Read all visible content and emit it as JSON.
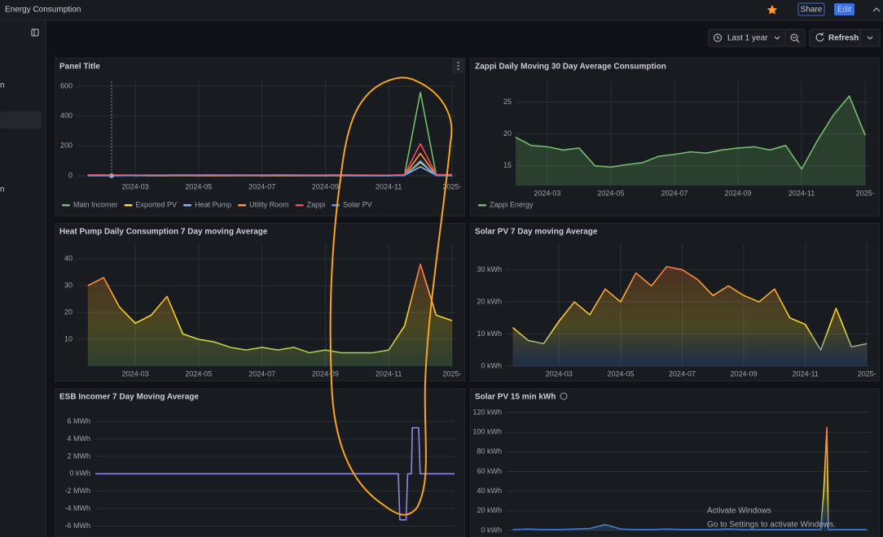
{
  "header": {
    "title": "Energy Consumption",
    "share": "Share",
    "edit": "Edit"
  },
  "toolbar": {
    "time_range": "Last 1 year",
    "refresh": "Refresh"
  },
  "sidebar": {
    "items": [
      "n",
      "n"
    ]
  },
  "watermark": {
    "title": "Activate Windows",
    "subtitle": "Go to Settings to activate Windows."
  },
  "chart_data": [
    {
      "type": "line",
      "title": "Panel Title",
      "grid": true,
      "fill": false,
      "legend": "bottom",
      "x": [
        0.5,
        1,
        1.5,
        2,
        2.5,
        3,
        3.5,
        4,
        4.5,
        5,
        5.5,
        6,
        6.5,
        7,
        7.5,
        8,
        8.5,
        9,
        9.5,
        10,
        10.5,
        11,
        11.5,
        12
      ],
      "xlim": [
        0.17,
        12.13
      ],
      "ylim": [
        -22,
        633
      ],
      "yticks": [
        0,
        200,
        400,
        600
      ],
      "xticks": [
        {
          "value": 2,
          "label": "2024-03"
        },
        {
          "value": 4,
          "label": "2024-05"
        },
        {
          "value": 6,
          "label": "2024-07"
        },
        {
          "value": 8,
          "label": "2024-09"
        },
        {
          "value": 10,
          "label": "2024-11"
        },
        {
          "value": 12,
          "label": "2025-"
        }
      ],
      "series": [
        {
          "name": "Main Incomer",
          "color": "#73bf69",
          "values": [
            3,
            4,
            3,
            3,
            4,
            3,
            5,
            3,
            3,
            4,
            3,
            3,
            4,
            3,
            3,
            3,
            4,
            3,
            3,
            3,
            6,
            560,
            5,
            4
          ]
        },
        {
          "name": "Exported PV",
          "color": "#fade2a",
          "values": [
            1,
            1,
            1,
            2,
            1,
            1,
            2,
            1,
            1,
            1,
            2,
            1,
            1,
            1,
            1,
            1,
            1,
            1,
            1,
            1,
            2,
            90,
            2,
            1
          ]
        },
        {
          "name": "Heat Pump",
          "color": "#8ab8ff",
          "values": [
            2,
            2,
            2,
            1,
            1,
            1,
            1,
            1,
            1,
            1,
            1,
            1,
            1,
            1,
            1,
            1,
            1,
            1,
            1,
            1,
            3,
            60,
            3,
            3
          ]
        },
        {
          "name": "Utility Room",
          "color": "#ff9830",
          "values": [
            1,
            1,
            1,
            1,
            1,
            1,
            1,
            1,
            1,
            1,
            1,
            1,
            1,
            1,
            1,
            1,
            1,
            1,
            1,
            1,
            2,
            150,
            2,
            2
          ]
        },
        {
          "name": "Zappi",
          "color": "#f2495c",
          "values": [
            6,
            5,
            5,
            4,
            4,
            5,
            5,
            5,
            6,
            5,
            5,
            5,
            6,
            5,
            5,
            5,
            6,
            5,
            4,
            3,
            8,
            215,
            8,
            8
          ]
        },
        {
          "name": "Solar PV",
          "color": "#5794f2",
          "values": [
            0,
            1,
            1,
            2,
            2,
            3,
            3,
            3,
            3,
            3,
            3,
            3,
            3,
            3,
            2,
            2,
            2,
            1,
            1,
            1,
            1,
            100,
            1,
            0
          ]
        }
      ]
    },
    {
      "type": "line",
      "title": "Zappi Daily Moving 30 Day Average Consumption",
      "grid": true,
      "fill": true,
      "legend": "bottom",
      "x": [
        1,
        1.5,
        2,
        2.5,
        3,
        3.5,
        4,
        4.5,
        5,
        5.5,
        6,
        6.5,
        7,
        7.5,
        8,
        8.5,
        9,
        9.5,
        10,
        10.5,
        11,
        11.5,
        12
      ],
      "xlim": [
        1.03,
        12.15
      ],
      "ylim": [
        11.9,
        28.3
      ],
      "yticks": [
        15,
        20,
        25
      ],
      "xticks": [
        {
          "value": 2,
          "label": "2024-03"
        },
        {
          "value": 4,
          "label": "2024-05"
        },
        {
          "value": 6,
          "label": "2024-07"
        },
        {
          "value": 8,
          "label": "2024-09"
        },
        {
          "value": 10,
          "label": "2024-11"
        },
        {
          "value": 12,
          "label": "2025-"
        }
      ],
      "series": [
        {
          "name": "Zappi Energy",
          "color": "#73bf69",
          "values": [
            19.5,
            18.2,
            18,
            17.5,
            17.8,
            15,
            14.8,
            15.2,
            15.5,
            16.5,
            16.8,
            17.2,
            17,
            17.5,
            17.8,
            18,
            17.5,
            18.2,
            14.5,
            19,
            23,
            26,
            19.8
          ]
        }
      ]
    },
    {
      "type": "line",
      "title": "Heat Pump Daily Consumption 7 Day moving Average",
      "grid": true,
      "fill": true,
      "color_scheme": [
        "#73bf69",
        "#fade2a",
        "#ff9830",
        "#f2495c"
      ],
      "x": [
        0.5,
        1,
        1.5,
        2,
        2.5,
        3,
        3.5,
        4,
        4.5,
        5,
        5.5,
        6,
        6.5,
        7,
        7.5,
        8,
        8.5,
        9,
        9.5,
        10,
        10.5,
        11,
        11.5,
        12
      ],
      "xlim": [
        0.17,
        12.13
      ],
      "ylim": [
        0,
        45.5
      ],
      "yticks": [
        10,
        20,
        30,
        40
      ],
      "xticks": [
        {
          "value": 2,
          "label": "2024-03"
        },
        {
          "value": 4,
          "label": "2024-05"
        },
        {
          "value": 6,
          "label": "2024-07"
        },
        {
          "value": 8,
          "label": "2024-09"
        },
        {
          "value": 10,
          "label": "2024-11"
        },
        {
          "value": 12,
          "label": "2025-"
        }
      ],
      "values": [
        30,
        33,
        22,
        16,
        19,
        26,
        12,
        10,
        9,
        7,
        6,
        7,
        6,
        7,
        5,
        6,
        5,
        5,
        5,
        6,
        15,
        38,
        19,
        17
      ]
    },
    {
      "type": "line",
      "title": "Solar PV 7 Day moving Average",
      "grid": true,
      "fill": true,
      "color_scheme": [
        "#3274d9",
        "#fade2a",
        "#ff9830",
        "#f2495c"
      ],
      "x": [
        0.5,
        1,
        1.5,
        2,
        2.5,
        3,
        3.5,
        4,
        4.5,
        5,
        5.5,
        6,
        6.5,
        7,
        7.5,
        8,
        8.5,
        9,
        9.5,
        10,
        10.5,
        11,
        11.5,
        12
      ],
      "xlim": [
        0.3,
        12.1
      ],
      "ylim": [
        0,
        38
      ],
      "yticks": [
        {
          "value": 0,
          "label": "0 kWh"
        },
        {
          "value": 10,
          "label": "10 kWh"
        },
        {
          "value": 20,
          "label": "20 kWh"
        },
        {
          "value": 30,
          "label": "30 kWh"
        }
      ],
      "xticks": [
        {
          "value": 2,
          "label": "2024-03"
        },
        {
          "value": 4,
          "label": "2024-05"
        },
        {
          "value": 6,
          "label": "2024-07"
        },
        {
          "value": 8,
          "label": "2024-09"
        },
        {
          "value": 10,
          "label": "2024-11"
        },
        {
          "value": 12,
          "label": "2025-"
        }
      ],
      "values": [
        12,
        8,
        7,
        14,
        20,
        16,
        24,
        20,
        29,
        25,
        31,
        30,
        27,
        22,
        25,
        22,
        20,
        24,
        15,
        13,
        5,
        18,
        6,
        7
      ]
    },
    {
      "type": "line",
      "title": "ESB Incomer 7 Day Moving Average",
      "grid": true,
      "fill": false,
      "color": "#8f87e8",
      "x": [
        0.5,
        2,
        4,
        6,
        8,
        10.2,
        10.25,
        10.45,
        10.5,
        10.62,
        10.65,
        10.85,
        10.9,
        12
      ],
      "xlim": [
        0.5,
        12
      ],
      "ylim": [
        -6.9,
        7.7
      ],
      "yticks": [
        {
          "value": 6,
          "label": "6 MWh"
        },
        {
          "value": 4,
          "label": "4 MWh"
        },
        {
          "value": 2,
          "label": "2 MWh"
        },
        {
          "value": 0,
          "label": "0 kWh"
        },
        {
          "value": -2,
          "label": "-2 MWh"
        },
        {
          "value": -4,
          "label": "-4 MWh"
        },
        {
          "value": -6,
          "label": "-6 MWh"
        }
      ],
      "values": [
        0,
        0,
        0,
        0,
        0,
        0,
        -5.3,
        -5.3,
        0,
        0,
        5.3,
        5.3,
        0,
        0
      ]
    },
    {
      "type": "line",
      "title": "Solar PV 15 min kWh",
      "grid": true,
      "fill": true,
      "color_scheme": [
        "#3274d9",
        "#fade2a",
        "#ff9830",
        "#f2495c"
      ],
      "x": [
        0.5,
        1,
        1.5,
        2,
        2.5,
        3,
        3.5,
        4,
        4.5,
        5,
        5.5,
        6,
        6.5,
        7,
        7.5,
        8,
        8.5,
        9,
        9.5,
        10,
        10.5,
        10.6,
        10.7,
        10.75,
        11,
        11.5,
        12
      ],
      "xlim": [
        0.3,
        12.1
      ],
      "ylim": [
        0,
        125
      ],
      "yticks": [
        {
          "value": 0,
          "label": "0 kWh"
        },
        {
          "value": 20,
          "label": "20 kWh"
        },
        {
          "value": 40,
          "label": "40 kWh"
        },
        {
          "value": 60,
          "label": "60 kWh"
        },
        {
          "value": 80,
          "label": "80 kWh"
        },
        {
          "value": 100,
          "label": "100 kWh"
        },
        {
          "value": 120,
          "label": "120 kWh"
        }
      ],
      "values": [
        1,
        1.5,
        1,
        1,
        1.5,
        2,
        6,
        1.5,
        1,
        1,
        1.5,
        1,
        1,
        1,
        1.5,
        1,
        1,
        1,
        1,
        1,
        1,
        40,
        105,
        1,
        1,
        1,
        1
      ]
    }
  ]
}
